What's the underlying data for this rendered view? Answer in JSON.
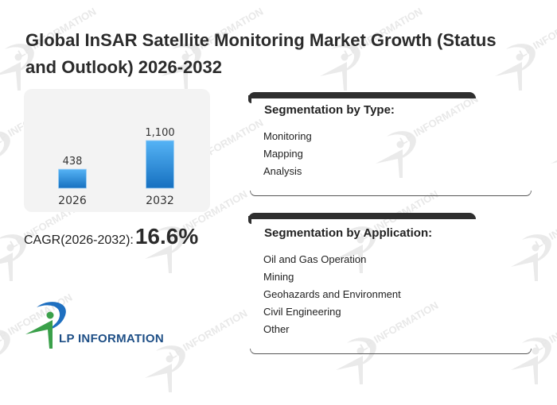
{
  "header": {
    "title": "Global InSAR Satellite Monitoring Market Growth (Status and Outlook) 2026-2032"
  },
  "chart_data": {
    "type": "bar",
    "title": "",
    "xlabel": "",
    "ylabel": "",
    "categories": [
      "2026",
      "2032"
    ],
    "values": [
      438,
      1100
    ],
    "value_labels": [
      "438",
      "1,100"
    ],
    "ylim": [
      0,
      1100
    ],
    "grid": false,
    "legend": "none",
    "bar_color_top": "#55b3f5",
    "bar_color_bottom": "#1670c0"
  },
  "cagr": {
    "label": "CAGR(2026-2032):",
    "value": "16.6%"
  },
  "segmentation_type": {
    "heading": "Segmentation by Type:",
    "items": [
      "Monitoring",
      "Mapping",
      "Analysis"
    ]
  },
  "segmentation_application": {
    "heading": "Segmentation by Application:",
    "items": [
      "Oil and Gas Operation",
      "Mining",
      "Geohazards and Environment",
      "Civil Engineering",
      "Other"
    ]
  },
  "logo": {
    "text": "LP INFORMATION",
    "colors": {
      "blue": "#1e6fc0",
      "green": "#3aa04a",
      "text": "#1e4f86"
    }
  },
  "watermark": {
    "text": "LP INFORMATION"
  }
}
